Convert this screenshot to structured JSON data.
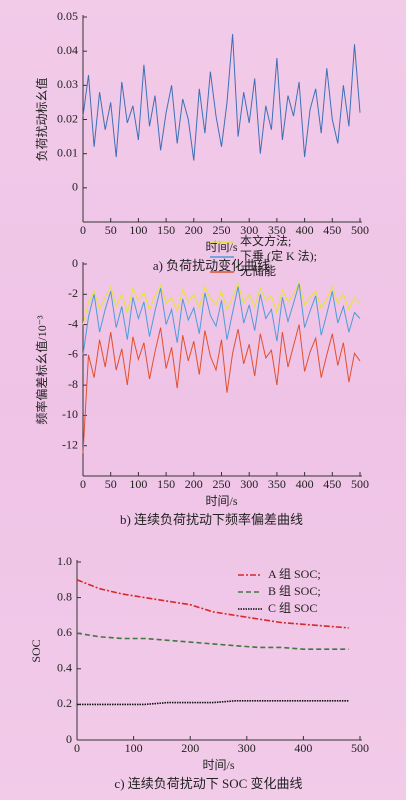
{
  "chart_data": [
    {
      "type": "line",
      "title": "a) 负荷扰动变化曲线",
      "xlabel": "时间/s",
      "ylabel": "负荷扰动标幺值",
      "x": [
        0,
        10,
        20,
        30,
        40,
        50,
        60,
        70,
        80,
        90,
        100,
        110,
        120,
        130,
        140,
        150,
        160,
        170,
        180,
        190,
        200,
        210,
        220,
        230,
        240,
        250,
        260,
        270,
        280,
        290,
        300,
        310,
        320,
        330,
        340,
        350,
        360,
        370,
        380,
        390,
        400,
        410,
        420,
        430,
        440,
        450,
        460,
        470,
        480,
        490,
        500
      ],
      "series": [
        {
          "color": "#3f6fb5",
          "values": [
            0.021,
            0.033,
            0.012,
            0.028,
            0.017,
            0.025,
            0.009,
            0.031,
            0.019,
            0.024,
            0.014,
            0.036,
            0.018,
            0.027,
            0.011,
            0.022,
            0.03,
            0.013,
            0.026,
            0.02,
            0.008,
            0.029,
            0.016,
            0.034,
            0.021,
            0.012,
            0.025,
            0.045,
            0.015,
            0.028,
            0.019,
            0.032,
            0.01,
            0.024,
            0.017,
            0.038,
            0.014,
            0.027,
            0.021,
            0.031,
            0.009,
            0.023,
            0.029,
            0.016,
            0.035,
            0.02,
            0.013,
            0.03,
            0.018,
            0.042,
            0.022
          ]
        }
      ],
      "xlim": [
        0,
        500
      ],
      "xticks": [
        0,
        50,
        100,
        150,
        200,
        250,
        300,
        350,
        400,
        450,
        500
      ],
      "ylim": [
        -0.01,
        0.05
      ],
      "yticks": [
        0,
        0.01,
        0.02,
        0.03,
        0.04,
        0.05
      ]
    },
    {
      "type": "line",
      "title": "b) 连续负荷扰动下频率偏差曲线",
      "xlabel": "时间/s",
      "ylabel": "频率偏差标幺值/10⁻³",
      "x": [
        0,
        10,
        20,
        30,
        40,
        50,
        60,
        70,
        80,
        90,
        100,
        110,
        120,
        130,
        140,
        150,
        160,
        170,
        180,
        190,
        200,
        210,
        220,
        230,
        240,
        250,
        260,
        270,
        280,
        290,
        300,
        310,
        320,
        330,
        340,
        350,
        360,
        370,
        380,
        390,
        400,
        410,
        420,
        430,
        440,
        450,
        460,
        470,
        480,
        490,
        500
      ],
      "series": [
        {
          "name": "本文方法;",
          "color": "#e6e62a",
          "values": [
            -4,
            -2.5,
            -1.8,
            -3,
            -2.2,
            -1.5,
            -2.8,
            -2,
            -3.2,
            -1.6,
            -2.4,
            -1.9,
            -3,
            -2.1,
            -1.4,
            -2.6,
            -2.2,
            -3.1,
            -1.7,
            -2.5,
            -2,
            -2.9,
            -1.5,
            -2.3,
            -2.7,
            -1.8,
            -3,
            -2.2,
            -1.3,
            -2.6,
            -2,
            -2.8,
            -1.6,
            -2.4,
            -2.1,
            -3.2,
            -1.7,
            -2.5,
            -2,
            -1.2,
            -2.7,
            -2.2,
            -1.8,
            -2.9,
            -2.3,
            -1.5,
            -2.6,
            -2,
            -3,
            -2.2,
            -2.6
          ]
        },
        {
          "name": "下垂 (定 K 法);",
          "color": "#4f9ad8",
          "values": [
            -6,
            -3.5,
            -2,
            -4.5,
            -3,
            -1.8,
            -4.2,
            -2.8,
            -5,
            -2.2,
            -3.6,
            -2.5,
            -4.8,
            -3.1,
            -1.6,
            -4,
            -3,
            -5.2,
            -2.3,
            -3.7,
            -2.9,
            -4.6,
            -1.9,
            -3.4,
            -4.1,
            -2.4,
            -5,
            -3.2,
            -1.5,
            -3.9,
            -2.7,
            -4.4,
            -2,
            -3.6,
            -3,
            -5.1,
            -2.2,
            -3.8,
            -2.6,
            -1.3,
            -4.2,
            -3.1,
            -2.1,
            -4.7,
            -3.3,
            -1.8,
            -3.9,
            -2.8,
            -4.5,
            -3.2,
            -3.6
          ]
        },
        {
          "name": "无储能",
          "color": "#e0502e",
          "values": [
            -12.5,
            -6,
            -7.5,
            -5,
            -6.8,
            -4.5,
            -7,
            -5.6,
            -8,
            -4.8,
            -6.3,
            -5.2,
            -7.6,
            -5.8,
            -4.2,
            -6.9,
            -5.5,
            -8.2,
            -4.7,
            -6.4,
            -5.1,
            -7.3,
            -4.4,
            -6.1,
            -7,
            -5,
            -8.5,
            -5.9,
            -4.3,
            -6.6,
            -5.3,
            -7.4,
            -4.6,
            -6.2,
            -5.7,
            -8,
            -4.5,
            -6.8,
            -5.4,
            -4,
            -7.1,
            -5.8,
            -4.9,
            -7.5,
            -6,
            -4.6,
            -6.7,
            -5.2,
            -7.8,
            -5.9,
            -6.4
          ]
        }
      ],
      "xlim": [
        0,
        500
      ],
      "xticks": [
        0,
        50,
        100,
        150,
        200,
        250,
        300,
        350,
        400,
        450,
        500
      ],
      "ylim": [
        -14,
        0
      ],
      "yticks": [
        -12,
        -10,
        -8,
        -6,
        -4,
        -2,
        0
      ]
    },
    {
      "type": "line",
      "title": "c) 连续负荷扰动下 SOC 变化曲线",
      "xlabel": "时间/s",
      "ylabel": "SOC",
      "x": [
        0,
        40,
        80,
        120,
        160,
        200,
        240,
        280,
        320,
        360,
        400,
        440,
        480
      ],
      "series": [
        {
          "name": "A 组 SOC;",
          "color": "#d42a2a",
          "dash": "6 2 2 2",
          "values": [
            0.9,
            0.85,
            0.82,
            0.8,
            0.78,
            0.76,
            0.72,
            0.7,
            0.68,
            0.66,
            0.65,
            0.64,
            0.63
          ]
        },
        {
          "name": "B 组 SOC;",
          "color": "#3d7a3d",
          "dash": "5 3",
          "values": [
            0.6,
            0.58,
            0.57,
            0.57,
            0.56,
            0.55,
            0.54,
            0.53,
            0.52,
            0.52,
            0.51,
            0.51,
            0.51
          ]
        },
        {
          "name": "C 组 SOC",
          "color": "#111111",
          "dash": "1.5 1",
          "values": [
            0.2,
            0.2,
            0.2,
            0.2,
            0.21,
            0.21,
            0.21,
            0.22,
            0.22,
            0.22,
            0.22,
            0.22,
            0.22
          ]
        }
      ],
      "xlim": [
        0,
        500
      ],
      "xticks": [
        0,
        100,
        200,
        300,
        400,
        500
      ],
      "ylim": [
        0,
        1
      ],
      "yticks": [
        0,
        0.2,
        0.4,
        0.6,
        0.8,
        {
          "value": 1,
          "label": "1.0"
        }
      ]
    }
  ]
}
